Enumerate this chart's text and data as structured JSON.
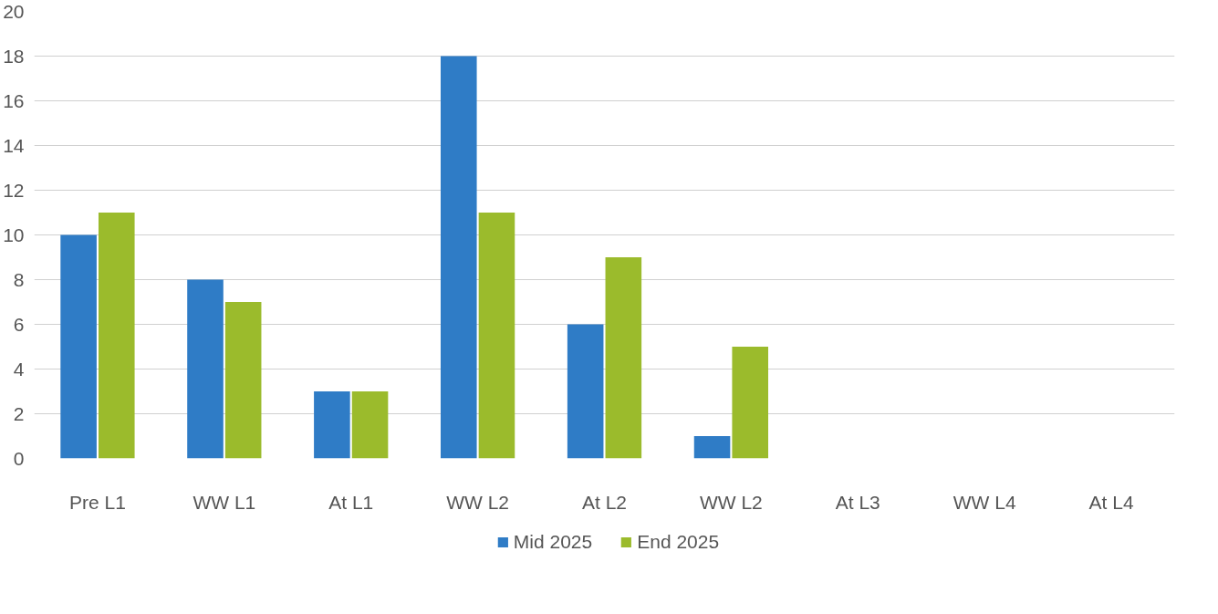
{
  "chart_data": {
    "type": "bar",
    "categories": [
      "Pre L1",
      "WW L1",
      "At L1",
      "WW L2",
      "At L2",
      "WW L2",
      "At L3",
      "WW L4",
      "At L4"
    ],
    "series": [
      {
        "name": "Mid 2025",
        "color": "#2f7cc6",
        "values": [
          10,
          8,
          3,
          18,
          6,
          1,
          null,
          null,
          null
        ]
      },
      {
        "name": "End 2025",
        "color": "#9bbb2c",
        "values": [
          11,
          7,
          3,
          11,
          9,
          5,
          null,
          null,
          null
        ]
      }
    ],
    "ylim": [
      0,
      20
    ],
    "yticks": [
      0,
      2,
      4,
      6,
      8,
      10,
      12,
      14,
      16,
      18,
      20
    ],
    "grid": "y",
    "legend": "bottom"
  }
}
